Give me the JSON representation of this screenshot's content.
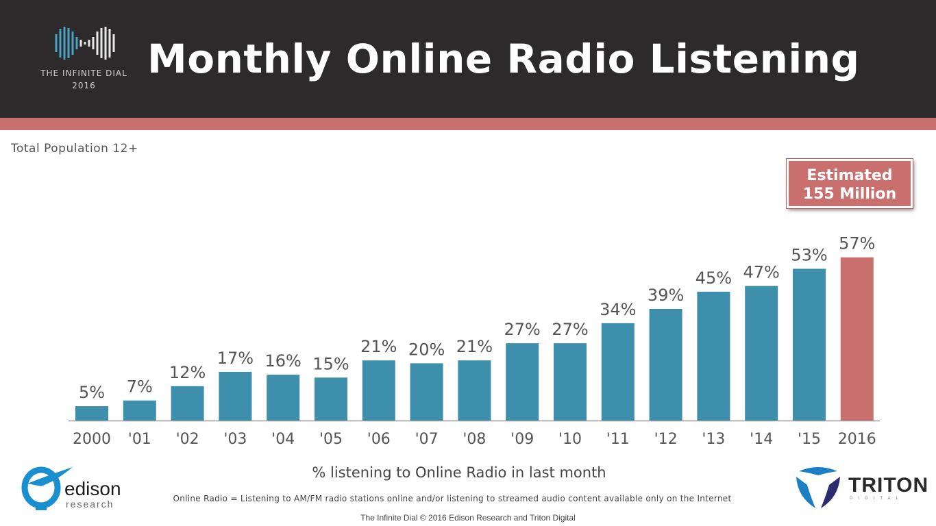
{
  "header": {
    "title": "Monthly Online Radio Listening",
    "logo_line1": "THE INFINITE DIAL",
    "logo_line2": "2016"
  },
  "subtitle": "Total Population 12+",
  "callout": {
    "line1": "Estimated",
    "line2": "155 Million"
  },
  "chart_data": {
    "type": "bar",
    "categories": [
      "2000",
      "'01",
      "'02",
      "'03",
      "'04",
      "'05",
      "'06",
      "'07",
      "'08",
      "'09",
      "'10",
      "'11",
      "'12",
      "'13",
      "'14",
      "'15",
      "2016"
    ],
    "values": [
      5,
      7,
      12,
      17,
      16,
      15,
      21,
      20,
      21,
      27,
      27,
      34,
      39,
      45,
      47,
      53,
      57
    ],
    "value_labels": [
      "5%",
      "7%",
      "12%",
      "17%",
      "16%",
      "15%",
      "21%",
      "20%",
      "21%",
      "27%",
      "27%",
      "34%",
      "39%",
      "45%",
      "47%",
      "53%",
      "57%"
    ],
    "xlabel": "% listening to Online Radio in last month",
    "ylabel": "",
    "ylim": [
      0,
      60
    ],
    "colors": {
      "bar": "#3d8fab",
      "highlight": "#c9706f"
    },
    "highlight_index": 16
  },
  "footnote": "Online Radio = Listening to AM/FM radio stations online and/or listening to streamed audio content available only on the Internet",
  "copyright": "The Infinite Dial © 2016 Edison Research and Triton Digital",
  "logos": {
    "edison_word": "edison",
    "edison_sub": "research",
    "triton_word": "TRITON",
    "triton_sub": "DIGITAL"
  }
}
